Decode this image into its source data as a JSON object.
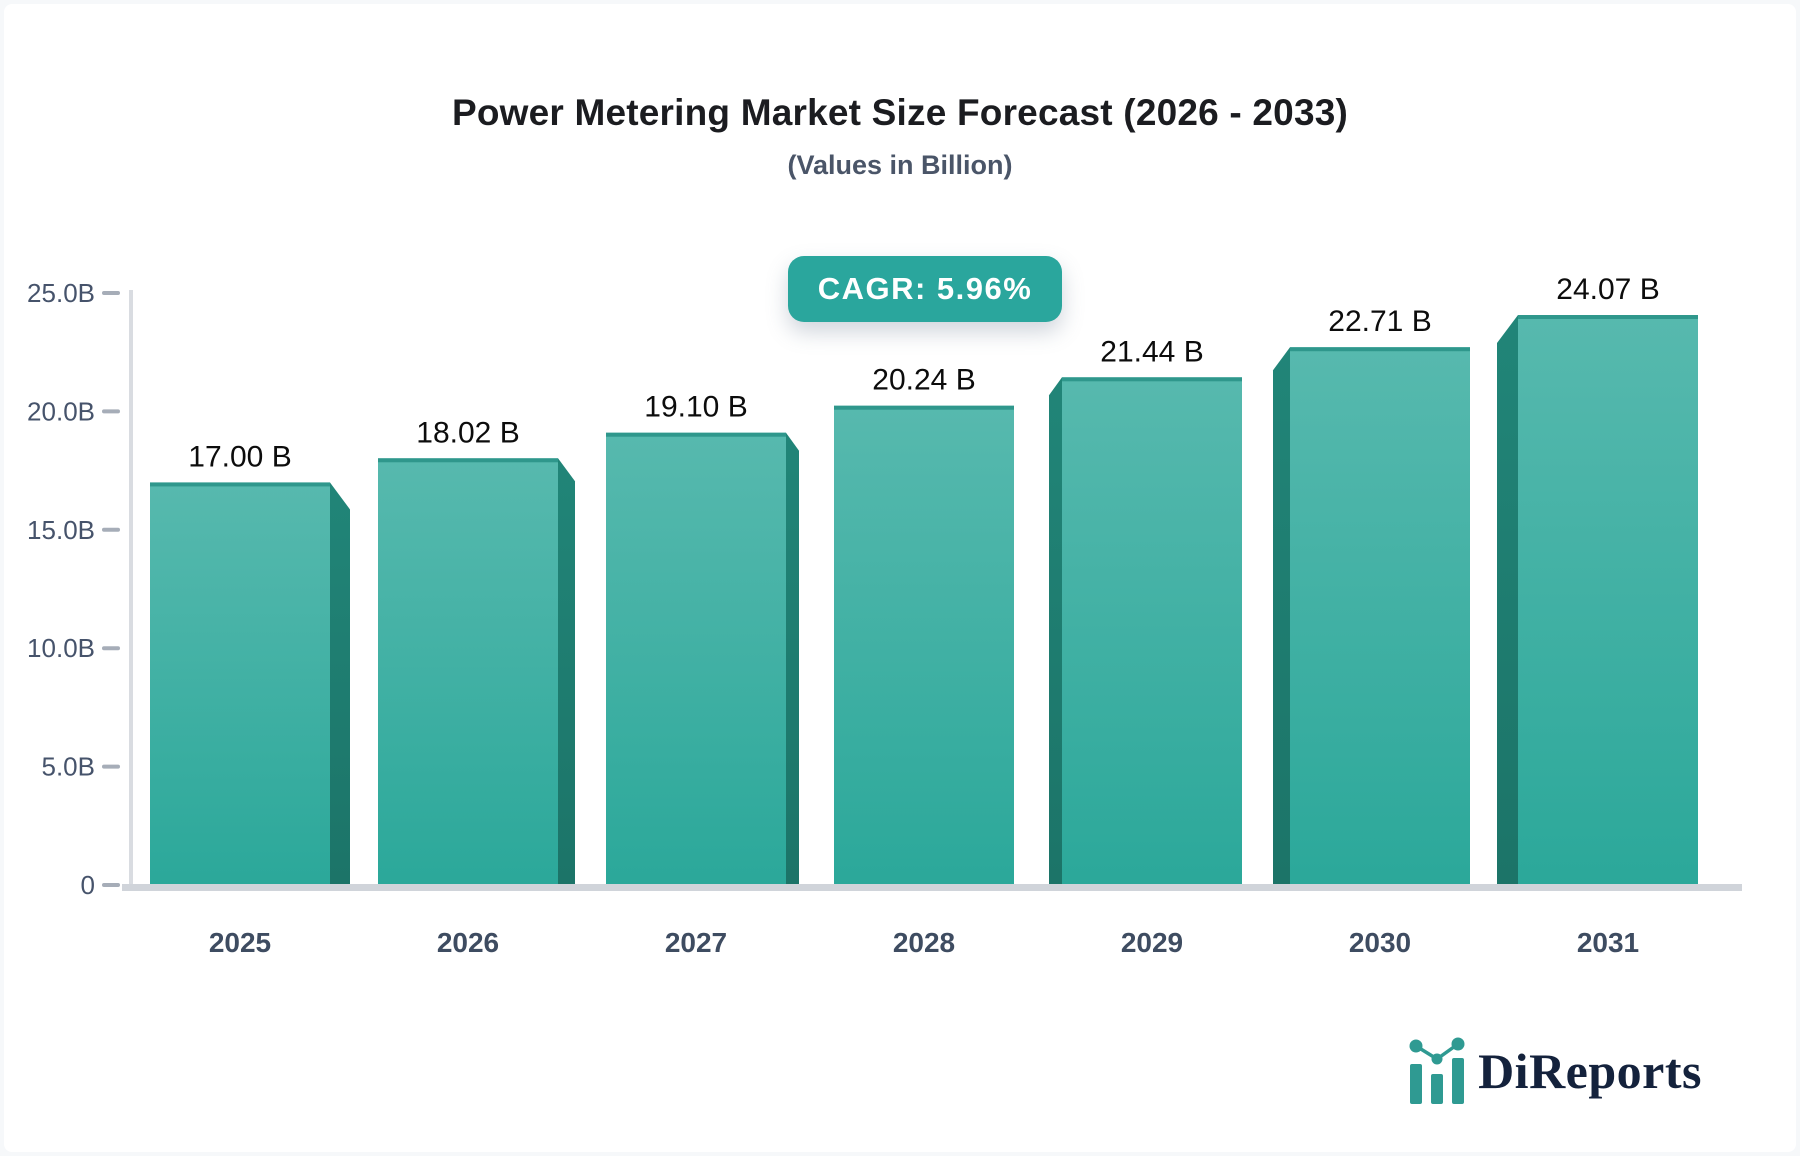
{
  "page": {
    "background_color": "#f6f8fa",
    "card_color": "#ffffff"
  },
  "header": {
    "title": "Power Metering Market Size Forecast (2026 - 2033)",
    "subtitle": "(Values in Billion)"
  },
  "cagr_badge": {
    "label": "CAGR: 5.96%",
    "background_color": "#2aa69d",
    "text_color": "#ffffff"
  },
  "chart_data": {
    "type": "bar",
    "title": "Power Metering Market Size Forecast (2026 - 2033)",
    "subtitle": "(Values in Billion)",
    "categories": [
      "2025",
      "2026",
      "2027",
      "2028",
      "2029",
      "2030",
      "2031"
    ],
    "values": [
      17.0,
      18.02,
      19.1,
      20.24,
      21.44,
      22.71,
      24.07
    ],
    "value_labels": [
      "17.00 B",
      "18.02 B",
      "19.10 B",
      "20.24 B",
      "21.44 B",
      "22.71 B",
      "24.07 B"
    ],
    "unit": "Billion",
    "xlabel": "",
    "ylabel": "",
    "ylim": [
      0,
      25
    ],
    "y_ticks": [
      0,
      5,
      10,
      15,
      20,
      25
    ],
    "y_tick_labels": [
      "0",
      "5.0B",
      "10.0B",
      "15.0B",
      "20.0B",
      "25.0B"
    ],
    "grid": false,
    "legend": false,
    "style_3d": true,
    "colors": {
      "bar_face_top": "#57b9ae",
      "bar_face_bottom": "#2ba89a",
      "bar_top_edge": "#2f978c",
      "bar_side_top": "#218578",
      "bar_side_bottom": "#1c7468",
      "axis_line": "#d9dce1",
      "baseline": "#d0d4da",
      "tick_dash": "#a6adb8",
      "axis_label": "#46536b",
      "category_label": "#3e4c61",
      "value_label": "#0c0c0c"
    }
  },
  "logo": {
    "text": "DiReports",
    "icon": "mini-bar-line-chart-icon",
    "icon_color": "#2f9a92",
    "text_color": "#14223c"
  }
}
